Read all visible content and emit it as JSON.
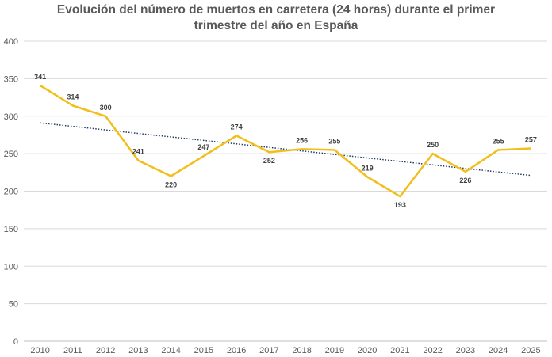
{
  "chart_data": {
    "type": "line",
    "title_line1": "Evolución del número de muertos en carretera (24 horas) durante el primer",
    "title_line2": "trimestre del año en España",
    "xlabel": "",
    "ylabel": "",
    "categories": [
      "2010",
      "2011",
      "2012",
      "2013",
      "2014",
      "2015",
      "2016",
      "2017",
      "2018",
      "2019",
      "2020",
      "2021",
      "2022",
      "2023",
      "2024",
      "2025"
    ],
    "series": [
      {
        "values": [
          341,
          314,
          300,
          241,
          220,
          247,
          274,
          252,
          256,
          255,
          219,
          193,
          250,
          226,
          255,
          257
        ],
        "color": "#F2BE1A"
      }
    ],
    "trendline": {
      "start": 291,
      "end": 221,
      "color": "#1F3864",
      "style": "dotted"
    },
    "ylim": [
      0,
      400
    ],
    "yticks": [
      0,
      50,
      100,
      150,
      200,
      250,
      300,
      350,
      400
    ],
    "grid": true,
    "legend": "none"
  }
}
